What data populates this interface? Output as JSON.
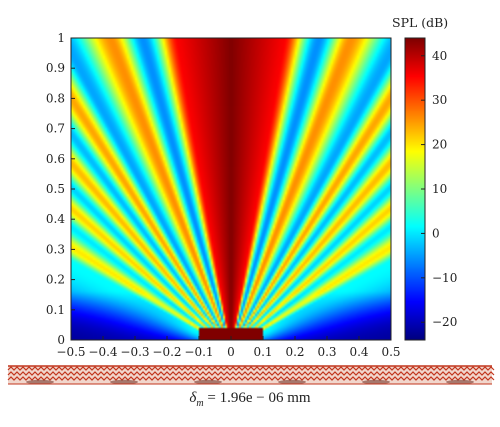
{
  "chart_data": {
    "type": "heatmap",
    "title": "",
    "xlabel": "",
    "ylabel": "",
    "xlim": [
      -0.5,
      0.5
    ],
    "ylim": [
      0,
      1
    ],
    "x_ticks": [
      "−0.5",
      "−0.4",
      "−0.3",
      "−0.2",
      "−0.1",
      "0",
      "0.1",
      "0.2",
      "0.3",
      "0.4",
      "0.5"
    ],
    "y_ticks": [
      "0",
      "0.1",
      "0.2",
      "0.3",
      "0.4",
      "0.5",
      "0.6",
      "0.7",
      "0.8",
      "0.9",
      "1"
    ],
    "colorbar": {
      "label": "SPL (dB)",
      "range": [
        -24,
        44
      ],
      "ticks": [
        "40",
        "30",
        "20",
        "10",
        "0",
        "−10",
        "−20"
      ],
      "colormap": "jet"
    },
    "field": {
      "description_values_dB": {
        "main_beam_center": 44,
        "side_lobes_peak": 26,
        "nulls_min": -10,
        "near_source_edges": -22
      },
      "lobe_angles_deg_from_vertical": [
        20,
        31,
        39,
        47,
        56
      ],
      "null_angles_deg_from_vertical": [
        15,
        27,
        35,
        43,
        51,
        60
      ]
    }
  },
  "caption": {
    "symbol": "δ",
    "subscript": "m",
    "text": " = 1.96e − 06 mm"
  },
  "colors": {
    "axis": "#222222",
    "transducer_red": "#c2361e",
    "transducer_bg": "#f1d6cc"
  }
}
